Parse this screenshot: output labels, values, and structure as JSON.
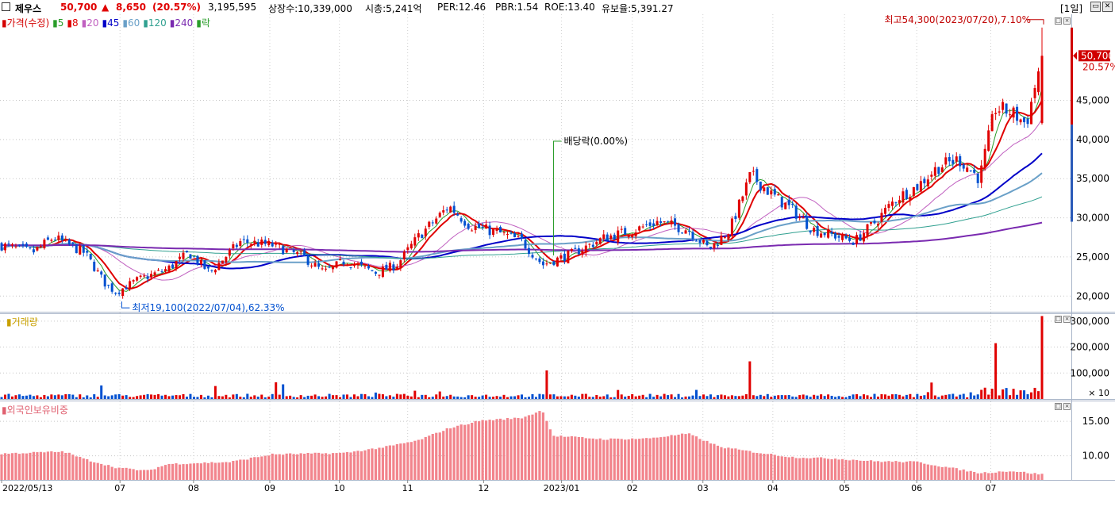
{
  "header": {
    "name": "제우스",
    "price": "50,700",
    "change_arrow": "▲",
    "change": "8,650",
    "change_pct": "(20.57%)",
    "volume": "3,195,595",
    "shares": "상장수:10,339,000",
    "mktcap": "시총:5,241억",
    "per": "PER:12.46",
    "pbr": "PBR:1.54",
    "roe": "ROE:13.40",
    "float_shares": "유보율:5,391.27",
    "period": "[1일]",
    "up_color": "#e00000",
    "down_color": "#0050d0"
  },
  "price_panel": {
    "legend": [
      {
        "text": "가격(수정)",
        "color": "#d40000"
      },
      {
        "text": "5",
        "color": "#2a9d2a"
      },
      {
        "text": "8",
        "color": "#e00000"
      },
      {
        "text": "20",
        "color": "#c060c0"
      },
      {
        "text": "45",
        "color": "#0000c8"
      },
      {
        "text": "60",
        "color": "#6aa0c8"
      },
      {
        "text": "120",
        "color": "#30a090"
      },
      {
        "text": "240",
        "color": "#7a2ab0"
      },
      {
        "text": "락",
        "color": "#2a9d2a"
      }
    ],
    "high_label": "최고54,300(2023/07/20),7.10%",
    "low_label": "최저19,100(2022/07/04),62.33%",
    "dividend_label": "배당락(0.00%)",
    "last_price_tag": "50,700",
    "last_pct_tag": "20.57%"
  },
  "volume_panel": {
    "title": "거래량",
    "scale_note": "× 10"
  },
  "foreign_panel": {
    "title": "외국인보유비중"
  },
  "x_axis": {
    "labels": [
      "2022/05/13",
      "07",
      "08",
      "09",
      "10",
      "11",
      "12",
      "2023/01",
      "02",
      "03",
      "04",
      "05",
      "06",
      "07"
    ]
  },
  "chart_data": [
    {
      "type": "candlestick",
      "title": "제우스 가격(수정)",
      "ylim": [
        18000,
        56000
      ],
      "yticks": [
        20000,
        25000,
        30000,
        35000,
        40000,
        45000
      ],
      "ytick_labels": [
        "20,000",
        "25,000",
        "30,000",
        "35,000",
        "40,000",
        "45,000"
      ],
      "x_start": "2022/05/13",
      "x_end": "2023/07/20",
      "close_path": [
        {
          "t": 0.0,
          "v": 26500
        },
        {
          "t": 0.03,
          "v": 25600
        },
        {
          "t": 0.05,
          "v": 27500
        },
        {
          "t": 0.08,
          "v": 25500
        },
        {
          "t": 0.1,
          "v": 21500
        },
        {
          "t": 0.11,
          "v": 20500
        },
        {
          "t": 0.13,
          "v": 22000
        },
        {
          "t": 0.16,
          "v": 23500
        },
        {
          "t": 0.18,
          "v": 25500
        },
        {
          "t": 0.2,
          "v": 23000
        },
        {
          "t": 0.23,
          "v": 27000
        },
        {
          "t": 0.26,
          "v": 26500
        },
        {
          "t": 0.29,
          "v": 25000
        },
        {
          "t": 0.31,
          "v": 23000
        },
        {
          "t": 0.33,
          "v": 24500
        },
        {
          "t": 0.36,
          "v": 23000
        },
        {
          "t": 0.38,
          "v": 24000
        },
        {
          "t": 0.4,
          "v": 27500
        },
        {
          "t": 0.43,
          "v": 31500
        },
        {
          "t": 0.45,
          "v": 29000
        },
        {
          "t": 0.48,
          "v": 28000
        },
        {
          "t": 0.5,
          "v": 27000
        },
        {
          "t": 0.52,
          "v": 24000
        },
        {
          "t": 0.55,
          "v": 25500
        },
        {
          "t": 0.58,
          "v": 27500
        },
        {
          "t": 0.61,
          "v": 28500
        },
        {
          "t": 0.63,
          "v": 29500
        },
        {
          "t": 0.66,
          "v": 28500
        },
        {
          "t": 0.68,
          "v": 26000
        },
        {
          "t": 0.7,
          "v": 28500
        },
        {
          "t": 0.72,
          "v": 35500
        },
        {
          "t": 0.74,
          "v": 33000
        },
        {
          "t": 0.76,
          "v": 31000
        },
        {
          "t": 0.78,
          "v": 28500
        },
        {
          "t": 0.82,
          "v": 27000
        },
        {
          "t": 0.84,
          "v": 29500
        },
        {
          "t": 0.86,
          "v": 32500
        },
        {
          "t": 0.88,
          "v": 34000
        },
        {
          "t": 0.9,
          "v": 36500
        },
        {
          "t": 0.92,
          "v": 37500
        },
        {
          "t": 0.94,
          "v": 35000
        },
        {
          "t": 0.955,
          "v": 44000
        },
        {
          "t": 0.97,
          "v": 43500
        },
        {
          "t": 0.985,
          "v": 42000
        },
        {
          "t": 1.0,
          "v": 50700
        }
      ],
      "last_candle": {
        "open": 42100,
        "high": 54300,
        "low": 41900,
        "close": 50700
      },
      "moving_averages": [
        {
          "name": "5",
          "color": "#2a9d2a"
        },
        {
          "name": "8",
          "color": "#e00000"
        },
        {
          "name": "20",
          "color": "#c060c0"
        },
        {
          "name": "45",
          "color": "#0000c8"
        },
        {
          "name": "60",
          "color": "#6aa0c8"
        },
        {
          "name": "120",
          "color": "#30a090"
        },
        {
          "name": "240",
          "color": "#7a2ab0"
        }
      ],
      "annotations": [
        {
          "text": "최고54,300(2023/07/20),7.10%",
          "value": 54300
        },
        {
          "text": "최저19,100(2022/07/04),62.33%",
          "value": 19100
        },
        {
          "text": "배당락(0.00%)"
        }
      ],
      "grid": true
    },
    {
      "type": "bar",
      "title": "거래량",
      "ylim": [
        0,
        330000
      ],
      "yticks": [
        100000,
        200000,
        300000
      ],
      "ytick_labels": [
        "100,000",
        "200,000",
        "300,000"
      ],
      "unit_note": "× 10",
      "spikes": [
        {
          "t": 0.525,
          "v": 110000
        },
        {
          "t": 0.718,
          "v": 145000
        },
        {
          "t": 0.955,
          "v": 215000
        },
        {
          "t": 1.0,
          "v": 319560
        }
      ],
      "grid": true
    },
    {
      "type": "bar",
      "title": "외국인보유비중",
      "ylim": [
        6.5,
        18.0
      ],
      "yticks": [
        10.0,
        15.0
      ],
      "ytick_labels": [
        "10.00",
        "15.00"
      ],
      "level_path": [
        {
          "t": 0.0,
          "v": 10.3
        },
        {
          "t": 0.06,
          "v": 10.6
        },
        {
          "t": 0.08,
          "v": 9.5
        },
        {
          "t": 0.11,
          "v": 8.3
        },
        {
          "t": 0.14,
          "v": 7.8
        },
        {
          "t": 0.16,
          "v": 8.8
        },
        {
          "t": 0.22,
          "v": 9.1
        },
        {
          "t": 0.26,
          "v": 10.2
        },
        {
          "t": 0.33,
          "v": 10.4
        },
        {
          "t": 0.37,
          "v": 11.3
        },
        {
          "t": 0.4,
          "v": 12.2
        },
        {
          "t": 0.43,
          "v": 14.0
        },
        {
          "t": 0.46,
          "v": 15.1
        },
        {
          "t": 0.5,
          "v": 15.5
        },
        {
          "t": 0.52,
          "v": 16.6
        },
        {
          "t": 0.53,
          "v": 12.9
        },
        {
          "t": 0.58,
          "v": 12.4
        },
        {
          "t": 0.62,
          "v": 12.5
        },
        {
          "t": 0.66,
          "v": 13.2
        },
        {
          "t": 0.69,
          "v": 11.3
        },
        {
          "t": 0.72,
          "v": 10.6
        },
        {
          "t": 0.76,
          "v": 9.8
        },
        {
          "t": 0.8,
          "v": 9.6
        },
        {
          "t": 0.84,
          "v": 9.2
        },
        {
          "t": 0.88,
          "v": 9.1
        },
        {
          "t": 0.91,
          "v": 8.3
        },
        {
          "t": 0.94,
          "v": 7.5
        },
        {
          "t": 0.97,
          "v": 7.8
        },
        {
          "t": 1.0,
          "v": 7.3
        }
      ],
      "grid": true
    }
  ]
}
